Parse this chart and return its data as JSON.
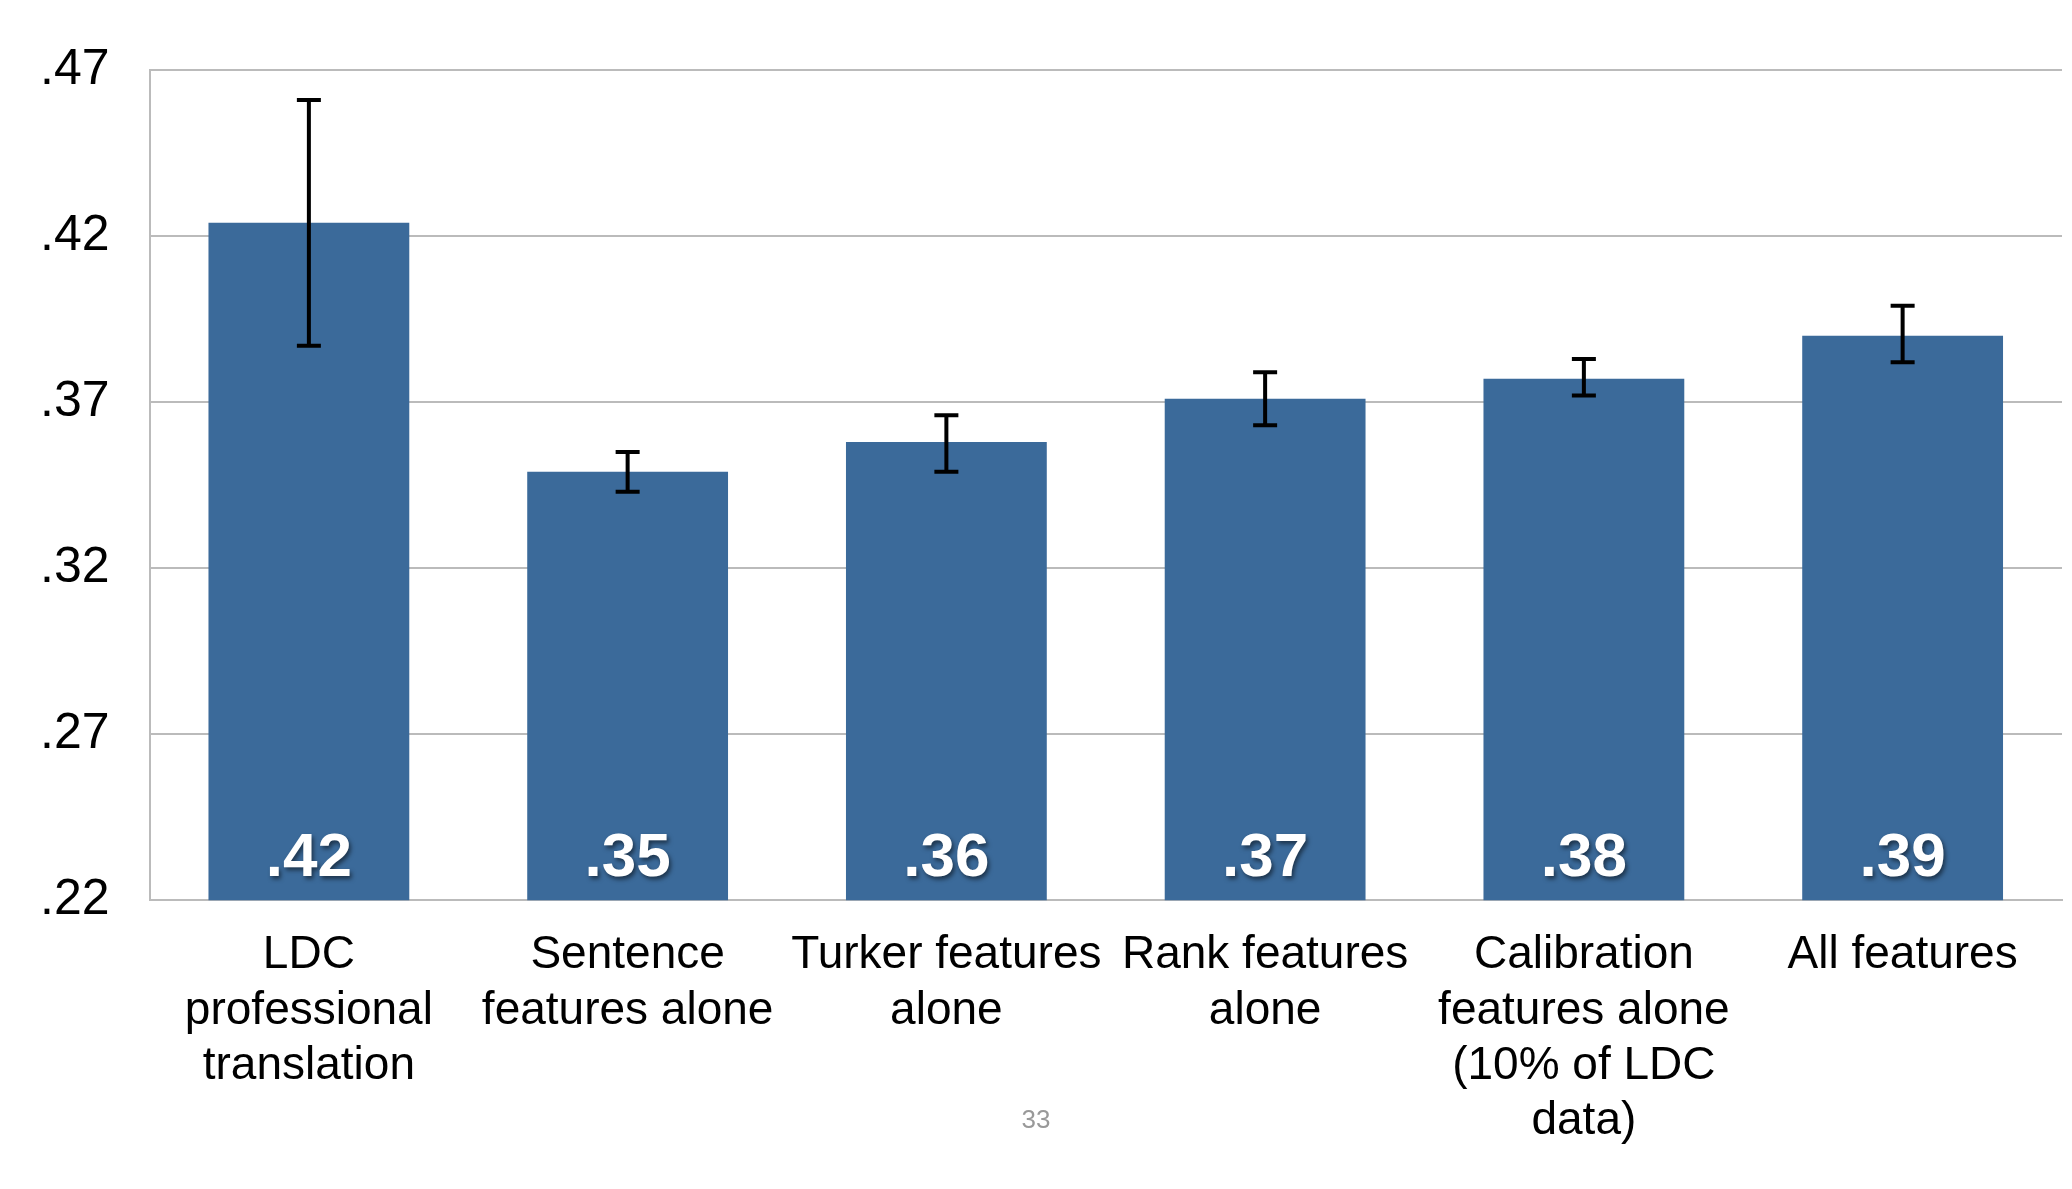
{
  "chart_data": {
    "type": "bar",
    "categories": [
      "LDC professional translation",
      "Sentence features alone",
      "Turker features alone",
      "Rank features alone",
      "Calibration features alone (10% of LDC data)",
      "All features"
    ],
    "values": [
      0.424,
      0.349,
      0.358,
      0.371,
      0.377,
      0.39
    ],
    "value_labels": [
      ".42",
      ".35",
      ".36",
      ".37",
      ".38",
      ".39"
    ],
    "errors": [
      [
        0.387,
        0.461
      ],
      [
        0.343,
        0.355
      ],
      [
        0.349,
        0.366
      ],
      [
        0.363,
        0.379
      ],
      [
        0.372,
        0.383
      ],
      [
        0.382,
        0.399
      ]
    ],
    "color": "#3b6a9a",
    "ylim": [
      0.22,
      0.47
    ],
    "yticks": [
      {
        "value": 0.22,
        "label": ".22"
      },
      {
        "value": 0.27,
        "label": ".27"
      },
      {
        "value": 0.32,
        "label": ".32"
      },
      {
        "value": 0.37,
        "label": ".37"
      },
      {
        "value": 0.42,
        "label": ".42"
      },
      {
        "value": 0.47,
        "label": ".47"
      }
    ],
    "grid": "y",
    "legend": false,
    "annotations": [
      "33"
    ]
  }
}
